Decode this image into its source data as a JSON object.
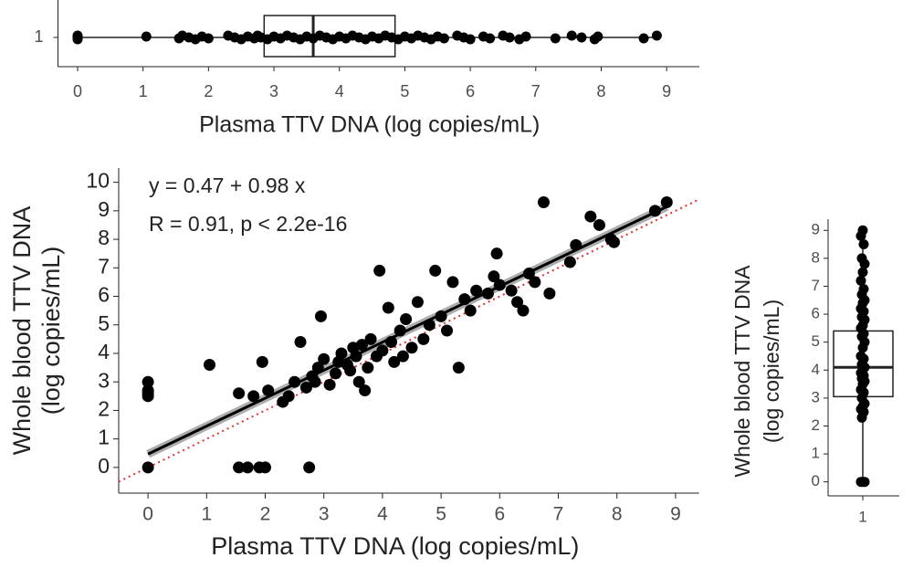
{
  "chart_data": [
    {
      "type": "box",
      "orientation": "horizontal",
      "x_label": "Plasma TTV DNA (log copies/mL)",
      "categories": [
        "1"
      ],
      "whisker_low": 0,
      "q1": 2.85,
      "median": 3.6,
      "q3": 4.85,
      "whisker_high": 8.85,
      "points": [
        0,
        0,
        0,
        1.05,
        1.55,
        1.6,
        1.7,
        1.8,
        1.9,
        2.0,
        2.3,
        2.4,
        2.5,
        2.6,
        2.7,
        2.75,
        2.8,
        2.9,
        3.0,
        3.1,
        3.2,
        3.3,
        3.4,
        3.5,
        3.6,
        3.7,
        3.8,
        3.9,
        4.0,
        4.1,
        4.2,
        4.3,
        4.4,
        4.5,
        4.6,
        4.7,
        4.8,
        4.9,
        5.0,
        5.1,
        5.2,
        5.3,
        5.4,
        5.5,
        5.6,
        5.8,
        5.9,
        6.0,
        6.2,
        6.3,
        6.5,
        6.6,
        6.75,
        6.85,
        7.3,
        7.55,
        7.7,
        7.9,
        7.95,
        8.65,
        8.85
      ],
      "color": "#000000",
      "xlim": [
        -0.3,
        9.5
      ],
      "xticks": [
        0,
        1,
        2,
        3,
        4,
        5,
        6,
        7,
        8,
        9
      ]
    },
    {
      "type": "scatter",
      "x_label": "Plasma TTV DNA (log copies/mL)",
      "y_label": [
        "Whole blood TTV DNA",
        "(log copies/mL)"
      ],
      "annotations": [
        "y = 0.47 + 0.98 x",
        "R = 0.91, p < 2.2e-16"
      ],
      "x": [
        0,
        0,
        0,
        0,
        0,
        1.05,
        1.55,
        1.55,
        1.7,
        1.8,
        1.9,
        2.0,
        1.95,
        2.05,
        2.75,
        2.3,
        2.4,
        2.5,
        2.6,
        2.7,
        2.8,
        2.9,
        2.95,
        3.0,
        3.1,
        3.2,
        3.3,
        3.4,
        3.5,
        3.6,
        3.7,
        3.8,
        3.9,
        3.95,
        4.0,
        4.1,
        4.2,
        4.3,
        4.4,
        4.5,
        4.6,
        4.7,
        4.8,
        4.9,
        5.0,
        5.1,
        5.2,
        5.3,
        5.4,
        5.5,
        5.6,
        5.8,
        5.9,
        5.95,
        6.0,
        6.2,
        6.3,
        6.4,
        6.5,
        6.6,
        6.75,
        6.85,
        7.2,
        7.3,
        7.55,
        7.7,
        7.9,
        7.95,
        8.65,
        8.85,
        3.45,
        3.55,
        3.65,
        3.75,
        4.15,
        4.35,
        2.85,
        3.25
      ],
      "values": [
        0,
        2.5,
        2.7,
        3.0,
        2.6,
        3.6,
        2.6,
        0,
        0,
        2.5,
        0,
        0,
        3.7,
        2.7,
        0,
        2.3,
        2.5,
        3.0,
        4.4,
        2.8,
        3.2,
        3.5,
        5.3,
        3.8,
        2.9,
        3.3,
        4.0,
        3.6,
        4.2,
        3.0,
        2.7,
        4.5,
        3.9,
        6.9,
        4.1,
        5.6,
        3.7,
        4.8,
        5.2,
        4.2,
        5.8,
        4.5,
        5.0,
        6.9,
        5.3,
        4.8,
        6.5,
        3.5,
        5.9,
        5.5,
        6.2,
        6.1,
        6.7,
        7.5,
        6.4,
        6.2,
        5.8,
        5.5,
        6.8,
        6.5,
        9.3,
        6.1,
        7.2,
        7.8,
        8.8,
        8.5,
        8.0,
        7.9,
        9.0,
        9.3,
        3.4,
        3.9,
        4.3,
        3.5,
        4.4,
        3.9,
        3.0,
        3.7
      ],
      "color": "#000000",
      "fit": {
        "intercept": 0.47,
        "slope": 0.98,
        "x_range": [
          0,
          8.85
        ],
        "color": "#000000"
      },
      "reference_line": {
        "intercept": 0,
        "slope": 1,
        "color": "#e03030"
      },
      "xlim": [
        -0.5,
        9.4
      ],
      "ylim": [
        -0.9,
        10.5
      ],
      "xticks": [
        0,
        1,
        2,
        3,
        4,
        5,
        6,
        7,
        8,
        9
      ],
      "yticks": [
        0,
        1,
        2,
        3,
        4,
        5,
        6,
        7,
        8,
        9,
        10
      ]
    },
    {
      "type": "box",
      "orientation": "vertical",
      "y_label": [
        "Whole blood TTV DNA",
        "(log copies/mL)"
      ],
      "categories": [
        "1"
      ],
      "whisker_low": 0,
      "q1": 3.05,
      "median": 4.1,
      "q3": 5.4,
      "whisker_high": 9.0,
      "points": [
        0,
        0,
        0,
        2.3,
        2.5,
        2.6,
        2.7,
        2.8,
        3.0,
        3.2,
        3.3,
        3.5,
        3.6,
        3.7,
        3.8,
        3.9,
        4.0,
        4.1,
        4.2,
        4.4,
        4.5,
        4.8,
        5.0,
        5.2,
        5.3,
        5.5,
        5.6,
        5.8,
        5.9,
        6.1,
        6.2,
        6.4,
        6.5,
        6.7,
        6.9,
        7.2,
        7.5,
        7.8,
        8.0,
        8.5,
        8.8,
        9.0
      ],
      "color": "#000000",
      "ylim": [
        -0.5,
        9.4
      ],
      "yticks": [
        0,
        1,
        2,
        3,
        4,
        5,
        6,
        7,
        8,
        9
      ]
    }
  ]
}
